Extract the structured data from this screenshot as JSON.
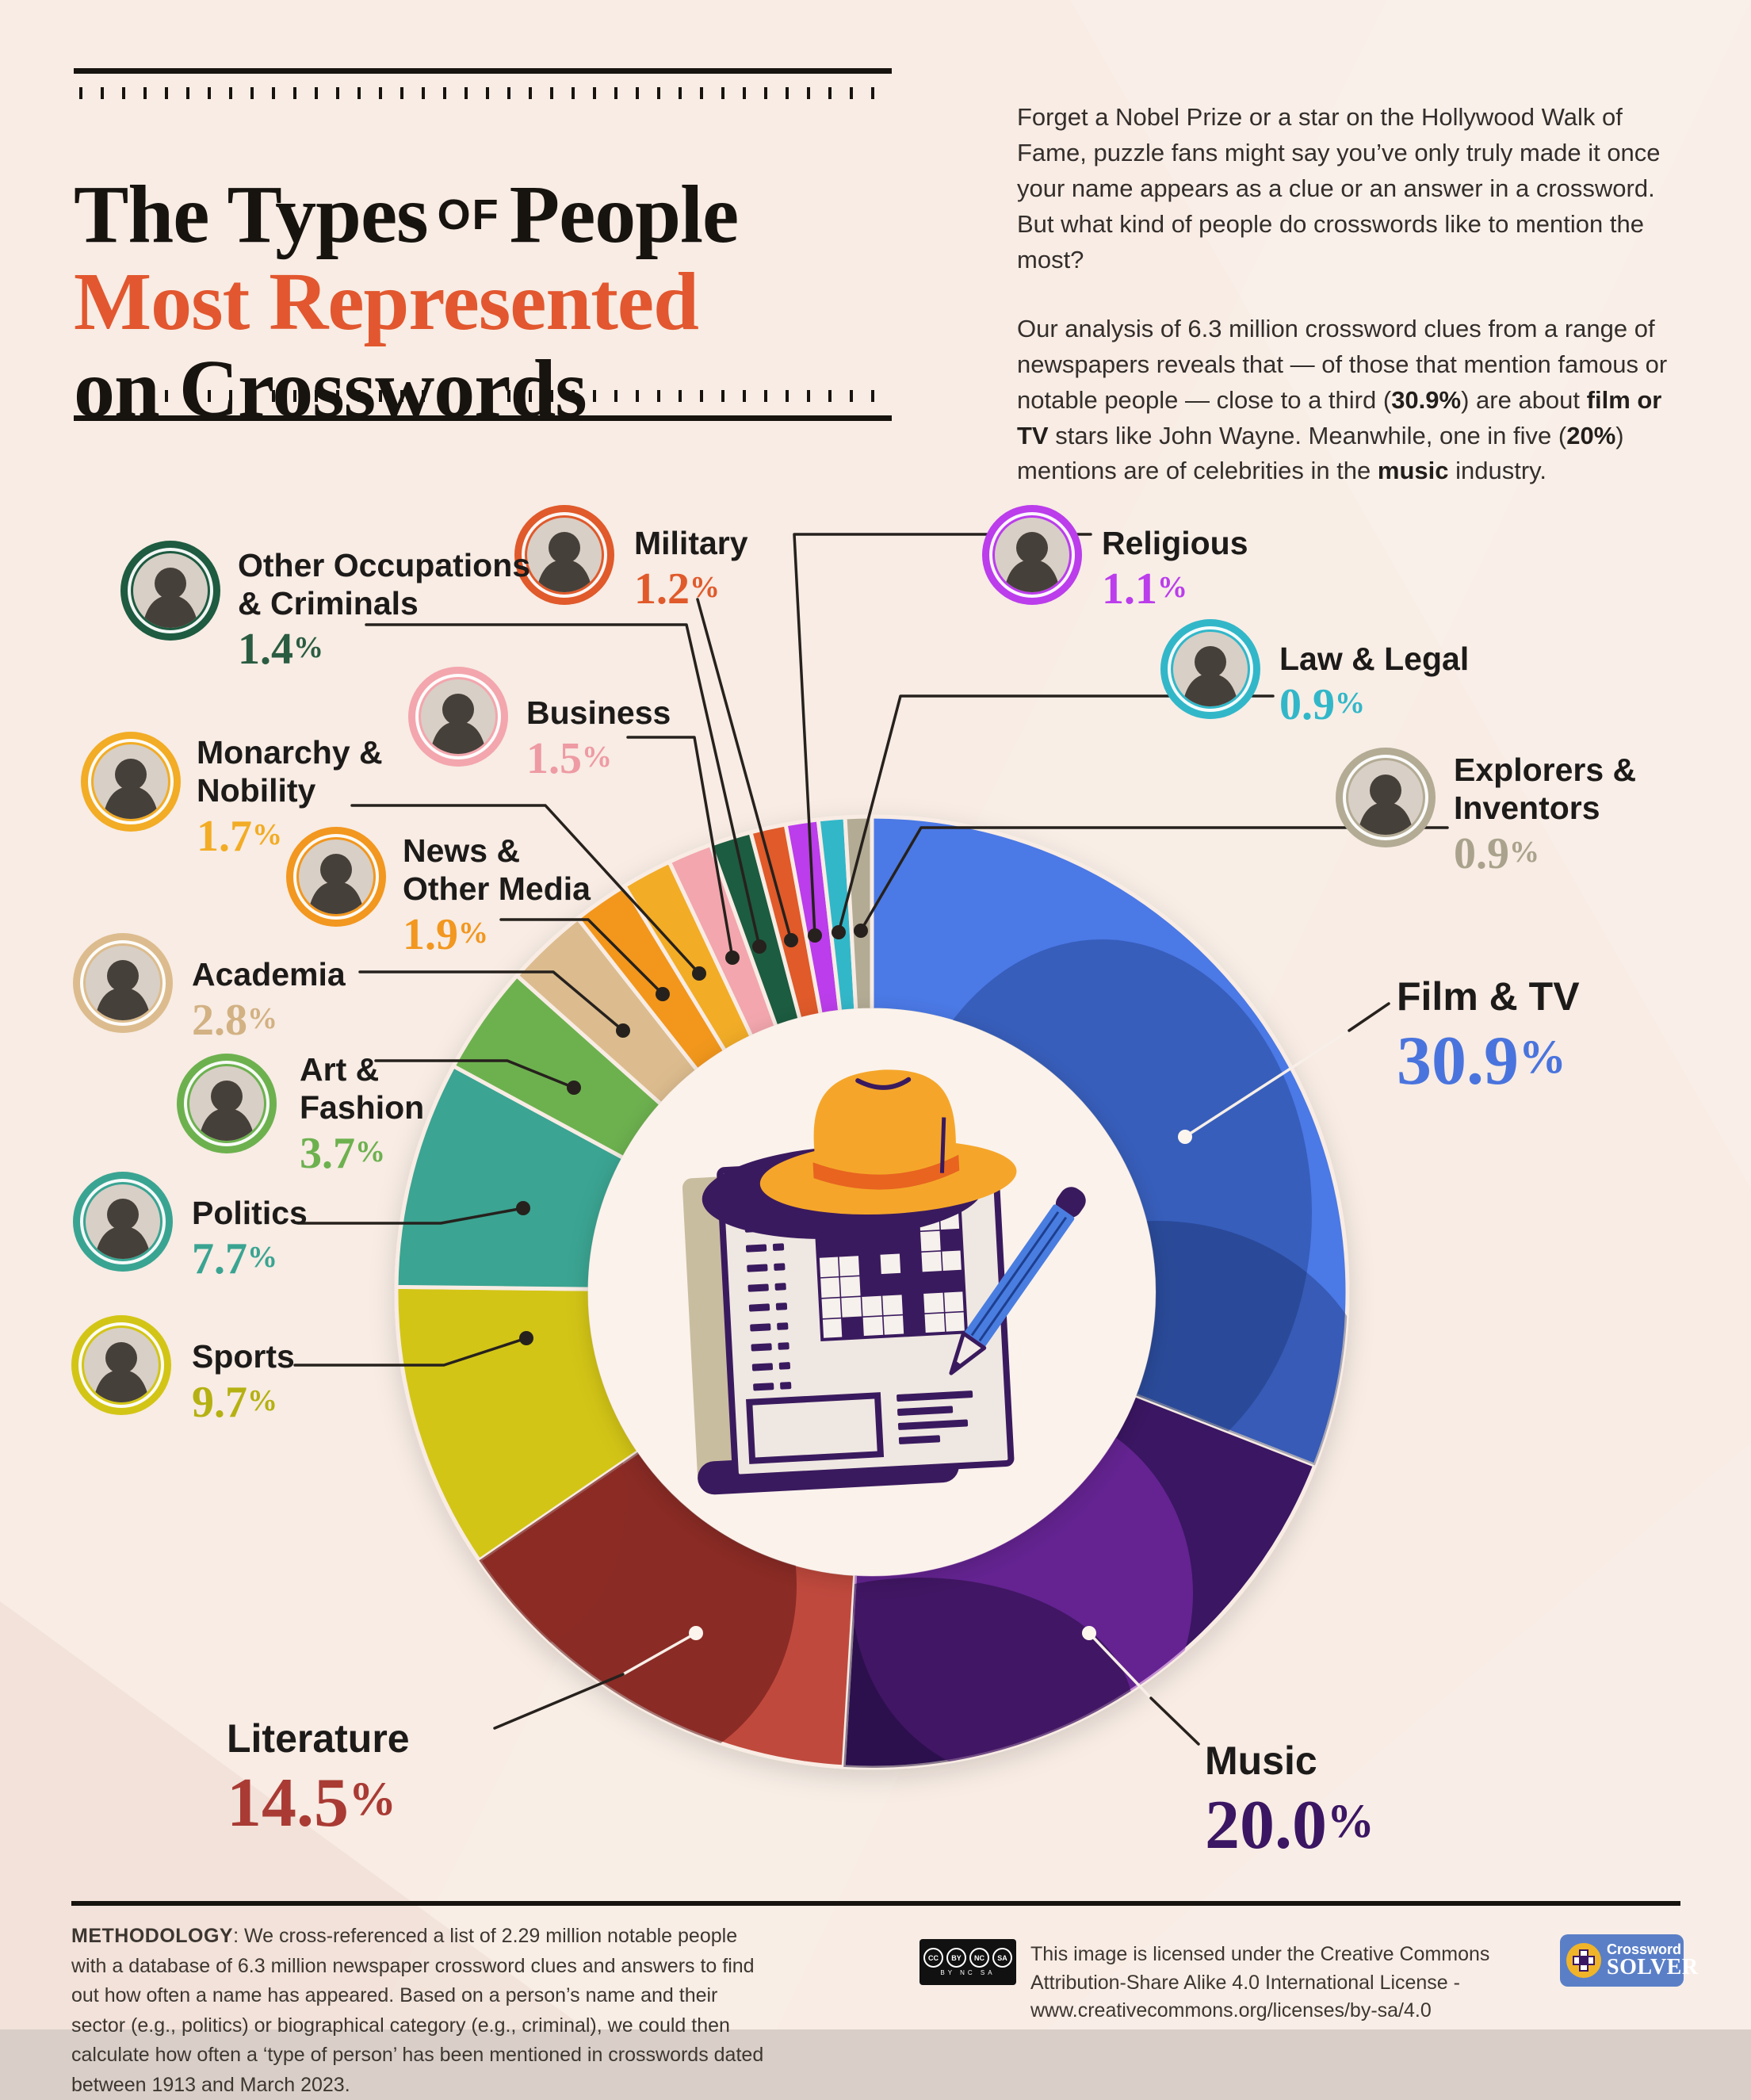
{
  "header": {
    "title": {
      "part1": "The Types",
      "part2": "OF",
      "part3": "People",
      "line2": "Most Represented",
      "line3": "on Crosswords"
    },
    "intro_p1": "Forget a Nobel Prize or a star on the Hollywood Walk of Fame, puzzle fans might say you’ve only truly made it once your name appears as a clue or an answer in a crossword. But what kind of people do crosswords like to mention the most?",
    "intro_p2_runs": [
      {
        "t": "Our analysis of 6.3 million crossword clues from a range of newspapers reveals that — of those that mention famous or notable people — close to a third ("
      },
      {
        "t": "30.9%",
        "b": true
      },
      {
        "t": ") are about "
      },
      {
        "t": "film or TV",
        "b": true
      },
      {
        "t": " stars like John Wayne. Meanwhile, one in five ("
      },
      {
        "t": "20%",
        "b": true
      },
      {
        "t": ") mentions are of celebrities in the "
      },
      {
        "t": "music",
        "b": true
      },
      {
        "t": " industry."
      }
    ]
  },
  "chart_data": {
    "type": "pie",
    "subtype": "donut",
    "unit": "percent",
    "legend_position": "radial-callouts",
    "center_icon": "crossword-newspaper-hat-pencil-illustration",
    "background_color": "#f8ece4",
    "categories": [
      {
        "key": "film-tv",
        "label_lines": [
          "Film & TV"
        ],
        "value": 30.9,
        "pct": "30.9%",
        "color": "#4c79e6",
        "text_color": "#4a74dd"
      },
      {
        "key": "music",
        "label_lines": [
          "Music"
        ],
        "value": 20.0,
        "pct": "20.0%",
        "color": "#3b1663",
        "text_color": "#3b1663"
      },
      {
        "key": "literature",
        "label_lines": [
          "Literature"
        ],
        "value": 14.5,
        "pct": "14.5%",
        "color": "#c04a3e",
        "text_color": "#a93b34"
      },
      {
        "key": "sports",
        "label_lines": [
          "Sports"
        ],
        "value": 9.7,
        "pct": "9.7%",
        "color": "#d3c516",
        "text_color": "#b5b112"
      },
      {
        "key": "politics",
        "label_lines": [
          "Politics"
        ],
        "value": 7.7,
        "pct": "7.7%",
        "color": "#3aa492",
        "text_color": "#3aa492"
      },
      {
        "key": "art-fashion",
        "label_lines": [
          "Art &",
          "Fashion"
        ],
        "value": 3.7,
        "pct": "3.7%",
        "color": "#6db14f",
        "text_color": "#6db14f"
      },
      {
        "key": "academia",
        "label_lines": [
          "Academia"
        ],
        "value": 2.8,
        "pct": "2.8%",
        "color": "#dcbc8e",
        "text_color": "#d2b183"
      },
      {
        "key": "news-media",
        "label_lines": [
          "News &",
          "Other Media"
        ],
        "value": 1.9,
        "pct": "1.9%",
        "color": "#f2971f",
        "text_color": "#f2971f"
      },
      {
        "key": "monarchy-nobility",
        "label_lines": [
          "Monarchy &",
          "Nobility"
        ],
        "value": 1.7,
        "pct": "1.7%",
        "color": "#f2ac25",
        "text_color": "#f2ac25"
      },
      {
        "key": "business",
        "label_lines": [
          "Business"
        ],
        "value": 1.5,
        "pct": "1.5%",
        "color": "#f3a6ad",
        "text_color": "#ee9ba4"
      },
      {
        "key": "other-occupations-criminals",
        "label_lines": [
          "Other Occupations",
          "& Criminals"
        ],
        "value": 1.4,
        "pct": "1.4%",
        "color": "#1e5b40",
        "text_color": "#2a5c42"
      },
      {
        "key": "military",
        "label_lines": [
          "Military"
        ],
        "value": 1.2,
        "pct": "1.2%",
        "color": "#e05a2b",
        "text_color": "#e05a2b"
      },
      {
        "key": "religious",
        "label_lines": [
          "Religious"
        ],
        "value": 1.1,
        "pct": "1.1%",
        "color": "#bb3deb",
        "text_color": "#bb3deb"
      },
      {
        "key": "law-legal",
        "label_lines": [
          "Law & Legal"
        ],
        "value": 0.9,
        "pct": "0.9%",
        "color": "#32b7c9",
        "text_color": "#32b7c9"
      },
      {
        "key": "explorers-inventors",
        "label_lines": [
          "Explorers &",
          "Inventors"
        ],
        "value": 0.9,
        "pct": "0.9%",
        "color": "#b3ab94",
        "text_color": "#aaa28c"
      }
    ]
  },
  "footer": {
    "methodology_runs": [
      {
        "t": "METHODOLOGY",
        "b": true
      },
      {
        "t": ": We cross-referenced a list of 2.29 million notable people with a database of 6.3 million newspaper crossword clues and answers to find out how often a name has appeared. Based on a person’s name and their sector (e.g., politics) or biographical category (e.g., criminal), we could then calculate how often a ‘type of person’ has been mentioned in crosswords dated between 1913 and March 2023."
      }
    ],
    "license_text": "This image is licensed under the Creative Commons Attribution-Share Alike 4.0 International License - www.creativecommons.org/licenses/by-sa/4.0",
    "cc": [
      "CC",
      "BY",
      "NC",
      "SA"
    ],
    "cc_caption": "BY NC SA",
    "logo": {
      "line1": "Crossword",
      "line2": "SOLVER"
    }
  }
}
